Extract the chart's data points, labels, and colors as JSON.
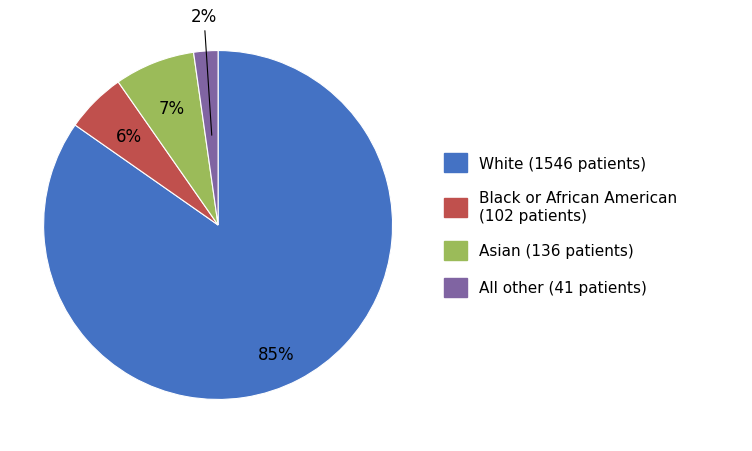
{
  "labels": [
    "White (1546 patients)",
    "Black or African American\n(102 patients)",
    "Asian (136 patients)",
    "All other (41 patients)"
  ],
  "values": [
    1546,
    102,
    136,
    41
  ],
  "colors": [
    "#4472C4",
    "#C0504D",
    "#9BBB59",
    "#8064A2"
  ],
  "pct_labels": [
    "85%",
    "6%",
    "7%",
    "2%"
  ],
  "background_color": "#ffffff",
  "legend_fontsize": 11,
  "pct_fontsize": 12
}
